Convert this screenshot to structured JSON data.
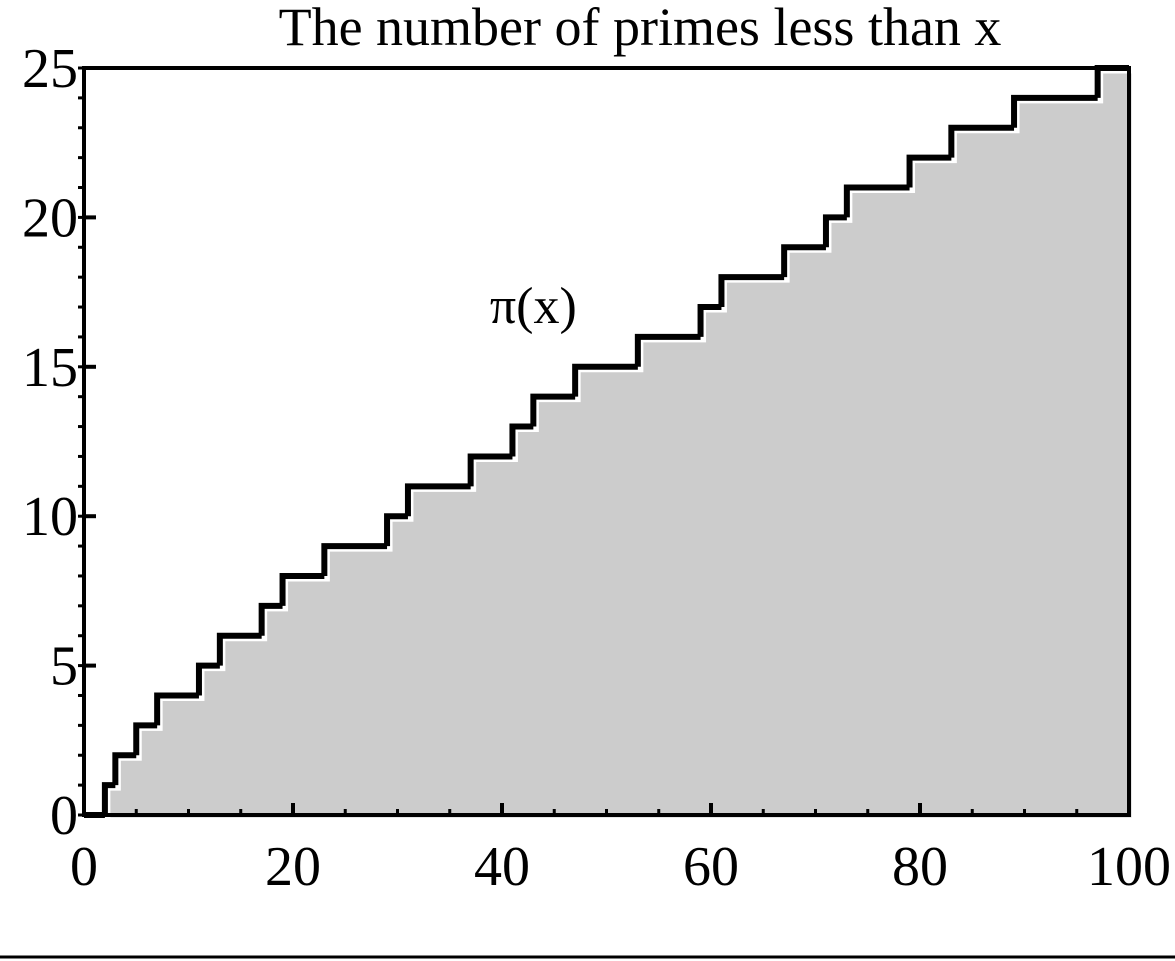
{
  "chart_data": {
    "type": "step",
    "title": "The number of primes less than x",
    "annotations": [
      {
        "text": "π(x)",
        "x": 43,
        "y": 17
      }
    ],
    "x": [
      0,
      2,
      3,
      5,
      7,
      11,
      13,
      17,
      19,
      23,
      29,
      31,
      37,
      41,
      43,
      47,
      53,
      59,
      61,
      67,
      71,
      73,
      79,
      83,
      89,
      97
    ],
    "values": [
      0,
      1,
      2,
      3,
      4,
      5,
      6,
      7,
      8,
      9,
      10,
      11,
      12,
      13,
      14,
      15,
      16,
      17,
      18,
      19,
      20,
      21,
      22,
      23,
      24,
      25
    ],
    "color": "#000000",
    "fill": "#cccccc",
    "xlim": [
      0,
      100
    ],
    "xticks": [
      0,
      20,
      40,
      60,
      80,
      100
    ],
    "ylim": [
      0,
      25
    ],
    "yticks": [
      0,
      5,
      10,
      15,
      20,
      25
    ],
    "minor_tick_step": {
      "x": 5,
      "y": 1
    }
  }
}
